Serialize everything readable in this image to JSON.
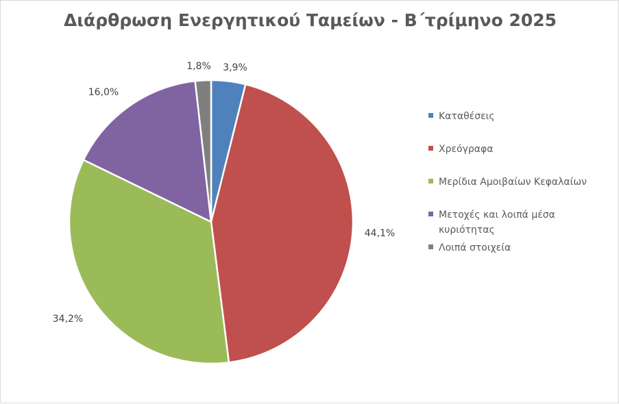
{
  "chart_data": {
    "type": "pie",
    "title": "Διάρθρωση Ενεργητικού Ταμείων - Β΄τρίμηνο 2025",
    "categories": [
      "Καταθέσεις",
      "Χρεόγραφα",
      "Μερίδια Αμοιβαίων Κεφαλαίων",
      "Μετοχές και λοιπά μέσα κυριότητας",
      "Λοιπά στοιχεία"
    ],
    "values": [
      3.9,
      44.1,
      34.2,
      16.0,
      1.8
    ],
    "value_labels": [
      "3,9%",
      "44,1%",
      "34,2%",
      "16,0%",
      "1,8%"
    ],
    "colors": [
      "#4f81bd",
      "#c0504d",
      "#9bbb59",
      "#8064a2",
      "#7f7f7f"
    ],
    "legend_position": "right"
  }
}
